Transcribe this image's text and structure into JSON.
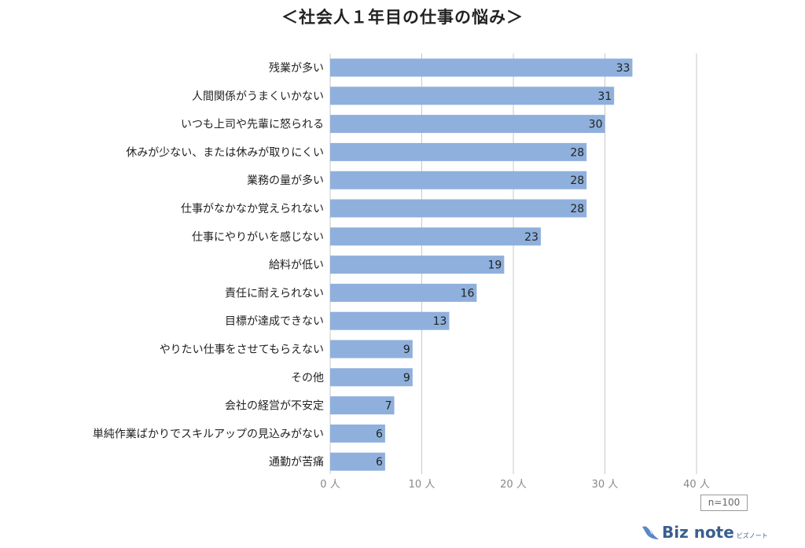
{
  "chart_data": {
    "type": "bar",
    "orientation": "horizontal",
    "title": "＜社会人１年目の仕事の悩み＞",
    "categories": [
      "残業が多い",
      "人間関係がうまくいかない",
      "いつも上司や先輩に怒られる",
      "休みが少ない、または休みが取りにくい",
      "業務の量が多い",
      "仕事がなかなか覚えられない",
      "仕事にやりがいを感じない",
      "給料が低い",
      "責任に耐えられない",
      "目標が達成できない",
      "やりたい仕事をさせてもらえない",
      "その他",
      "会社の経営が不安定",
      "単純作業ばかりでスキルアップの見込みがない",
      "通勤が苦痛"
    ],
    "values": [
      33,
      31,
      30,
      28,
      28,
      28,
      23,
      19,
      16,
      13,
      9,
      9,
      7,
      6,
      6
    ],
    "xlim": [
      0,
      40
    ],
    "xticks": [
      0,
      10,
      20,
      30,
      40
    ],
    "xtick_labels": [
      "0 人",
      "10 人",
      "20 人",
      "30 人",
      "40 人"
    ],
    "grid": "vertical",
    "bar_color": "#8fb0dc",
    "grid_color": "#c8c8c8",
    "label_color": "#222222",
    "tick_color": "#888888",
    "note": "n=100"
  },
  "brand": {
    "name": "Biz note",
    "sub": "ビズノート",
    "color": "#3a5f8f"
  }
}
